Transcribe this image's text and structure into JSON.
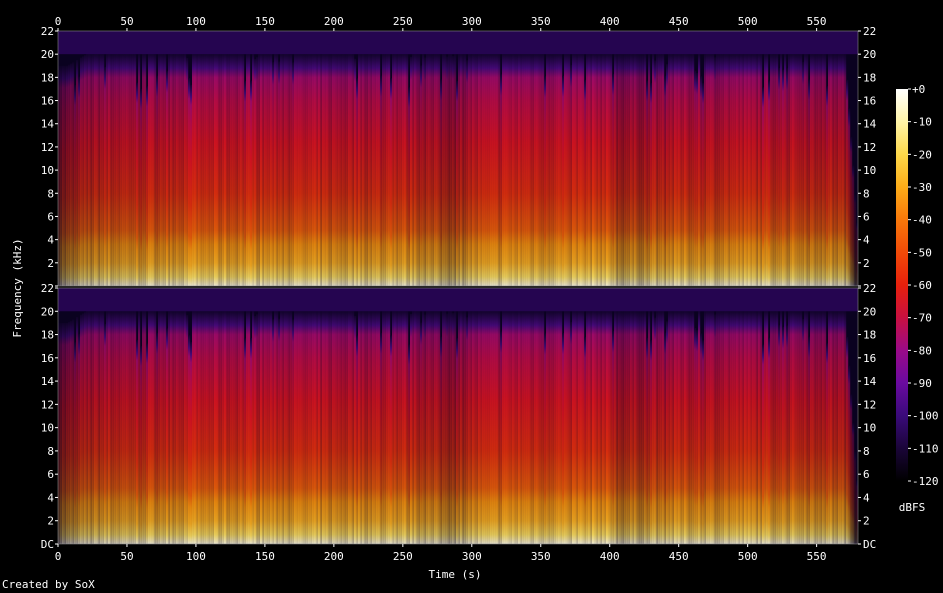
{
  "chart_data": {
    "type": "heatmap",
    "subtype": "spectrogram",
    "xlabel": "Time (s)",
    "ylabel": "Frequency (kHz)",
    "xlim": [
      0,
      580
    ],
    "x_ticks": [
      0,
      50,
      100,
      150,
      200,
      250,
      300,
      350,
      400,
      450,
      500,
      550
    ],
    "ylim": [
      0,
      22
    ],
    "y_ticks": [
      0,
      2,
      4,
      6,
      8,
      10,
      12,
      14,
      16,
      18,
      20,
      22
    ],
    "y_tick_labels": [
      "DC",
      "2",
      "4",
      "6",
      "8",
      "10",
      "12",
      "14",
      "16",
      "18",
      "20",
      "22"
    ],
    "channels": 2,
    "colorbar": {
      "label": "dBFS",
      "range": [
        -120,
        0
      ],
      "ticks": [
        "+0",
        "-10",
        "-20",
        "-30",
        "-40",
        "-50",
        "-60",
        "-70",
        "-80",
        "-90",
        "-100",
        "-110",
        "-120"
      ],
      "colors": [
        "#000000",
        "#1a0538",
        "#3a0a7a",
        "#6a0aa0",
        "#9a0a88",
        "#c81040",
        "#e8200c",
        "#f04a08",
        "#f8780a",
        "#fcac18",
        "#fdd84a",
        "#fff4a8",
        "#ffffff"
      ]
    },
    "energy_profile": [
      {
        "t": 0,
        "cutoff_khz": 19,
        "level": 0.38
      },
      {
        "t": 6,
        "cutoff_khz": 19,
        "level": 0.45
      },
      {
        "t": 20,
        "cutoff_khz": 20,
        "level": 0.62
      },
      {
        "t": 35,
        "cutoff_khz": 20,
        "level": 0.7
      },
      {
        "t": 70,
        "cutoff_khz": 20,
        "level": 0.76
      },
      {
        "t": 100,
        "cutoff_khz": 20,
        "level": 0.78
      },
      {
        "t": 150,
        "cutoff_khz": 20,
        "level": 0.77
      },
      {
        "t": 200,
        "cutoff_khz": 20,
        "level": 0.74
      },
      {
        "t": 250,
        "cutoff_khz": 20,
        "level": 0.76
      },
      {
        "t": 285,
        "cutoff_khz": 20,
        "level": 0.58
      },
      {
        "t": 300,
        "cutoff_khz": 20,
        "level": 0.74
      },
      {
        "t": 335,
        "cutoff_khz": 20,
        "level": 0.8
      },
      {
        "t": 400,
        "cutoff_khz": 20,
        "level": 0.8
      },
      {
        "t": 405,
        "cutoff_khz": 20,
        "level": 0.62
      },
      {
        "t": 450,
        "cutoff_khz": 20,
        "level": 0.74
      },
      {
        "t": 500,
        "cutoff_khz": 20,
        "level": 0.76
      },
      {
        "t": 555,
        "cutoff_khz": 20,
        "level": 0.72
      },
      {
        "t": 570,
        "cutoff_khz": 20,
        "level": 0.66
      },
      {
        "t": 580,
        "cutoff_khz": 3,
        "level": 0.1
      }
    ]
  },
  "footer": {
    "credit": "Created by SoX"
  }
}
